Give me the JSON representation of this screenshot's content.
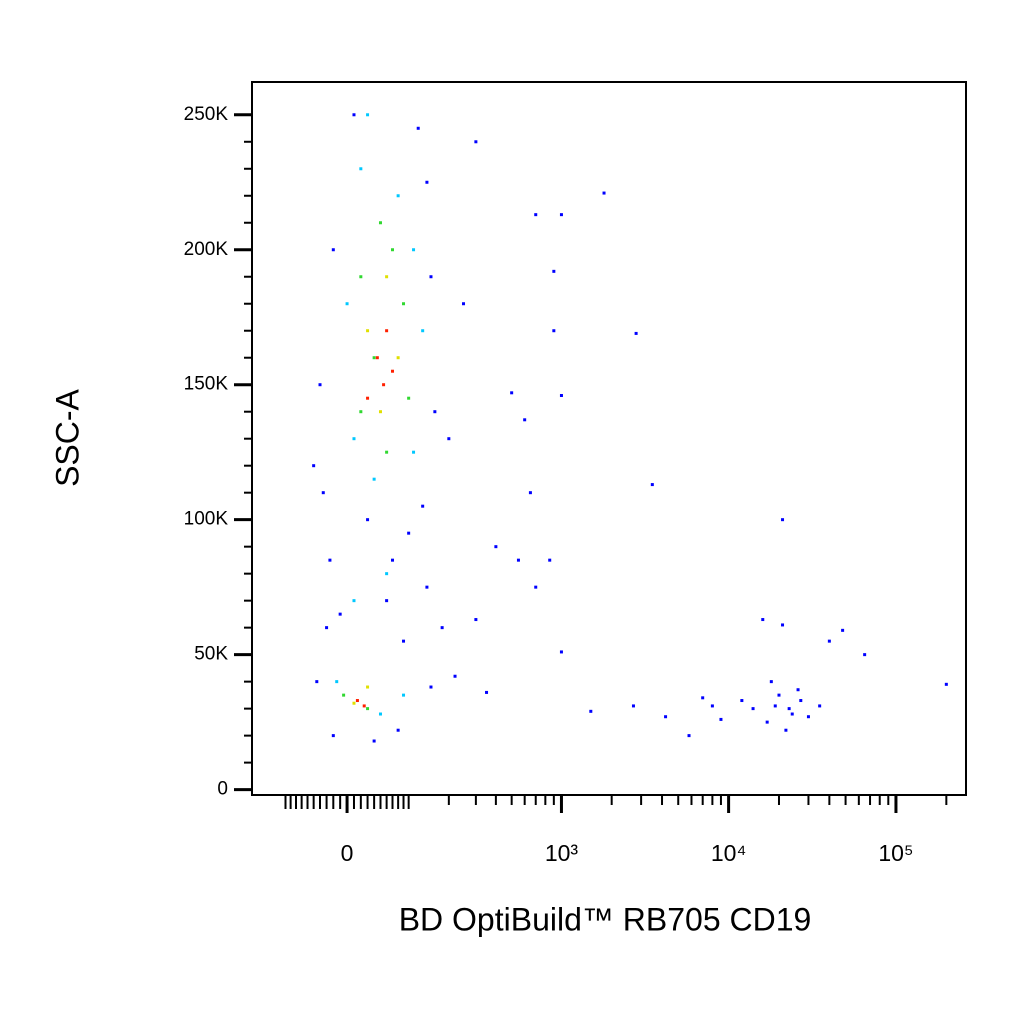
{
  "chart_data": {
    "type": "scatter",
    "xlabel": "BD OptiBuild™ RB705 CD19",
    "ylabel": "SSC-A",
    "xscale": "biexponential",
    "xlim": [
      -180,
      262144
    ],
    "xticks": [
      0,
      {
        "value": 1000,
        "label": "10³"
      },
      {
        "value": 10000,
        "label": "10⁴"
      },
      {
        "value": 100000,
        "label": "10⁵"
      }
    ],
    "ylim": [
      -2000,
      262144
    ],
    "yticks": [
      0,
      {
        "value": 50000,
        "label": "50K"
      },
      {
        "value": 100000,
        "label": "100K"
      },
      {
        "value": 150000,
        "label": "150K"
      },
      {
        "value": 200000,
        "label": "200K"
      },
      {
        "value": 250000,
        "label": "250K"
      }
    ],
    "series": [
      {
        "color": "#0000ff",
        "x": [
          -30,
          10,
          120,
          140,
          -20,
          150,
          -40,
          160,
          -35,
          130,
          100,
          -25,
          140,
          60,
          -10,
          90,
          -45,
          150,
          -20,
          80,
          40,
          200,
          250,
          -50,
          30,
          70,
          180,
          300,
          220,
          350,
          700,
          1000,
          1800,
          900,
          900,
          2800,
          500,
          1000,
          600,
          650,
          3500,
          21000,
          400,
          550,
          850,
          700,
          1000,
          300,
          1500,
          2700,
          4200,
          5800,
          65000,
          200000,
          48000,
          40000,
          14000,
          17000,
          20000,
          24000,
          27000,
          30000,
          18000,
          22000,
          35000,
          12000,
          9000,
          16000,
          21000,
          26000,
          8000,
          7000,
          19000,
          23000
        ],
        "values": [
          60000,
          250000,
          245000,
          225000,
          200000,
          190000,
          150000,
          140000,
          110000,
          105000,
          95000,
          85000,
          75000,
          70000,
          65000,
          55000,
          40000,
          38000,
          20000,
          22000,
          18000,
          130000,
          180000,
          120000,
          100000,
          85000,
          60000,
          240000,
          42000,
          36000,
          213000,
          213000,
          221000,
          192000,
          170000,
          169000,
          147000,
          146000,
          137000,
          110000,
          113000,
          100000,
          90000,
          85000,
          85000,
          75000,
          51000,
          63000,
          29000,
          31000,
          27000,
          20000,
          50000,
          39000,
          59000,
          55000,
          30000,
          25000,
          35000,
          28000,
          33000,
          27000,
          40000,
          22000,
          31000,
          33000,
          26000,
          63000,
          61000,
          37000,
          31000,
          34000,
          31000,
          30000
        ]
      },
      {
        "color": "#00c8ff",
        "x": [
          20,
          80,
          110,
          0,
          130,
          10,
          110,
          40,
          60,
          10,
          -15,
          50,
          90,
          30
        ],
        "values": [
          230000,
          220000,
          200000,
          180000,
          170000,
          130000,
          125000,
          115000,
          80000,
          70000,
          40000,
          28000,
          35000,
          250000
        ]
      },
      {
        "color": "#30d830",
        "x": [
          50,
          20,
          90,
          100,
          20,
          60,
          -5,
          30,
          70,
          40
        ],
        "values": [
          210000,
          190000,
          180000,
          145000,
          140000,
          125000,
          35000,
          30000,
          200000,
          160000
        ]
      },
      {
        "color": "#e0e000",
        "x": [
          60,
          30,
          80,
          50,
          10,
          30
        ],
        "values": [
          190000,
          170000,
          160000,
          140000,
          32000,
          38000
        ]
      },
      {
        "color": "#ff2000",
        "x": [
          60,
          45,
          55,
          30,
          70,
          15,
          25
        ],
        "values": [
          170000,
          160000,
          150000,
          145000,
          155000,
          33000,
          31000
        ]
      }
    ]
  }
}
